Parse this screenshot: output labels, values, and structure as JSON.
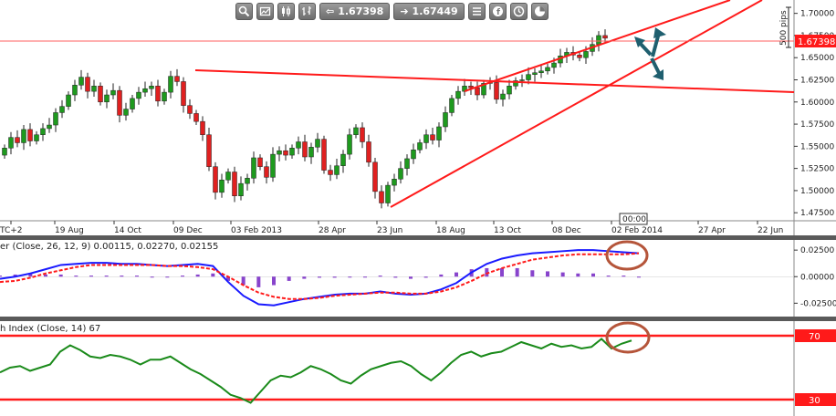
{
  "toolbar": {
    "bid_price": "1.67398",
    "ask_price": "1.67449",
    "icons": [
      "zoom-icon",
      "chart-settings-icon",
      "candlestick-icon",
      "bar-type-icon",
      "list-icon",
      "facebook-icon",
      "clock-icon",
      "chart-type-icon"
    ]
  },
  "main_panel": {
    "current_price_tag": "1.67398",
    "pips_label": "500 pips",
    "time_marker": "00:00",
    "y_ticks": [
      1.7,
      1.675,
      1.65,
      1.625,
      1.6,
      1.575,
      1.55,
      1.525,
      1.5,
      1.475
    ],
    "x_labels": [
      "TC+2",
      "19 Aug",
      "14 Oct",
      "09 Dec",
      "03 Feb 2013",
      "28 Apr",
      "23 Jun",
      "18 Aug",
      "13 Oct",
      "08 Dec",
      "02 Feb 2014",
      "27 Apr",
      "22 Jun"
    ]
  },
  "macd_panel": {
    "label": "er (Close, 26, 12, 9) 0.00115, 0.02270, 0.02155",
    "y_ticks": [
      "0.02500",
      "0.00000",
      "-0.02500"
    ]
  },
  "rsi_panel": {
    "label": "h Index (Close, 14) 67",
    "levels": [
      "70",
      "30"
    ]
  },
  "colors": {
    "bull": "#1e9a1e",
    "bear": "#e02020",
    "trendline": "#ff1a1a",
    "macd_line": "#1a1aff",
    "signal_line": "#ff1a1a",
    "histogram": "#8844cc",
    "rsi_line": "#1a8a1a",
    "annotation_circle": "#b5553a",
    "arrows": "#1f5f6f"
  },
  "chart_data": [
    {
      "type": "candlestick",
      "title": "",
      "ylim": [
        1.468,
        1.712
      ],
      "x": [
        "TC+2",
        "19 Aug",
        "14 Oct",
        "09 Dec",
        "03 Feb 2013",
        "28 Apr",
        "23 Jun",
        "18 Aug",
        "13 Oct",
        "08 Dec",
        "02 Feb 2014",
        "27 Apr",
        "22 Jun"
      ],
      "closes": [
        1.548,
        1.56,
        1.554,
        1.569,
        1.556,
        1.563,
        1.57,
        1.574,
        1.588,
        1.595,
        1.608,
        1.619,
        1.628,
        1.612,
        1.618,
        1.6,
        1.608,
        1.613,
        1.585,
        1.592,
        1.604,
        1.611,
        1.615,
        1.618,
        1.601,
        1.611,
        1.629,
        1.623,
        1.596,
        1.587,
        1.578,
        1.563,
        1.527,
        1.498,
        1.512,
        1.521,
        1.494,
        1.508,
        1.514,
        1.537,
        1.527,
        1.515,
        1.541,
        1.545,
        1.54,
        1.548,
        1.555,
        1.538,
        1.549,
        1.558,
        1.523,
        1.518,
        1.528,
        1.541,
        1.563,
        1.571,
        1.555,
        1.532,
        1.499,
        1.486,
        1.506,
        1.513,
        1.525,
        1.536,
        1.546,
        1.554,
        1.563,
        1.557,
        1.572,
        1.588,
        1.604,
        1.612,
        1.618,
        1.616,
        1.608,
        1.621,
        1.622,
        1.603,
        1.609,
        1.618,
        1.624,
        1.625,
        1.631,
        1.633,
        1.635,
        1.639,
        1.644,
        1.652,
        1.656,
        1.653,
        1.65,
        1.657,
        1.665,
        1.675,
        1.672
      ],
      "last_price": 1.67398,
      "trendlines": "rising wedge with two ascending lines and one descending resistance line"
    },
    {
      "type": "line",
      "title": "er (Close, 26, 12, 9) 0.00115, 0.02270, 0.02155",
      "ylim": [
        -0.035,
        0.032
      ],
      "series": [
        {
          "name": "MACD",
          "values": [
            -0.002,
            0.0,
            0.003,
            0.007,
            0.011,
            0.012,
            0.013,
            0.013,
            0.012,
            0.012,
            0.011,
            0.01,
            0.011,
            0.012,
            0.01,
            -0.005,
            -0.018,
            -0.026,
            -0.027,
            -0.024,
            -0.021,
            -0.019,
            -0.017,
            -0.016,
            -0.016,
            -0.014,
            -0.016,
            -0.017,
            -0.016,
            -0.012,
            -0.006,
            0.004,
            0.012,
            0.017,
            0.02,
            0.022,
            0.023,
            0.024,
            0.025,
            0.025,
            0.024,
            0.023,
            0.022
          ]
        },
        {
          "name": "Signal",
          "values": [
            -0.005,
            -0.004,
            -0.001,
            0.003,
            0.006,
            0.009,
            0.011,
            0.011,
            0.011,
            0.011,
            0.011,
            0.01,
            0.01,
            0.009,
            0.007,
            0.0,
            -0.008,
            -0.015,
            -0.019,
            -0.021,
            -0.021,
            -0.02,
            -0.018,
            -0.017,
            -0.016,
            -0.015,
            -0.015,
            -0.016,
            -0.016,
            -0.014,
            -0.01,
            -0.004,
            0.003,
            0.008,
            0.012,
            0.016,
            0.018,
            0.02,
            0.021,
            0.021,
            0.021,
            0.021,
            0.022
          ]
        },
        {
          "name": "Histogram",
          "values": [
            0.001,
            0.002,
            0.003,
            0.002,
            0.002,
            0.001,
            0.001,
            0.001,
            0.001,
            0.001,
            0.0,
            0.0,
            0.001,
            0.002,
            0.003,
            -0.004,
            -0.008,
            -0.01,
            -0.008,
            -0.004,
            -0.002,
            -0.001,
            -0.001,
            0.0,
            0.0,
            0.001,
            -0.001,
            -0.002,
            -0.001,
            0.002,
            0.004,
            0.007,
            0.008,
            0.008,
            0.008,
            0.006,
            0.005,
            0.004,
            0.003,
            0.003,
            0.001,
            0.001,
            0.0
          ]
        }
      ]
    },
    {
      "type": "line",
      "title": "h Index (Close, 14) 67",
      "ylim": [
        25,
        75
      ],
      "series": [
        {
          "name": "",
          "values": [
            47,
            50,
            51,
            48,
            50,
            52,
            60,
            64,
            61,
            57,
            56,
            58,
            57,
            55,
            52,
            55,
            55,
            57,
            53,
            49,
            46,
            42,
            38,
            33,
            31,
            28,
            35,
            42,
            45,
            44,
            47,
            51,
            49,
            46,
            42,
            40,
            45,
            49,
            51,
            53,
            54,
            51,
            46,
            42,
            47,
            53,
            58,
            60,
            57,
            59,
            60,
            63,
            66,
            64,
            62,
            65,
            63,
            64,
            62,
            63,
            68,
            62,
            65,
            67
          ]
        }
      ],
      "levels": [
        70,
        30
      ]
    }
  ]
}
